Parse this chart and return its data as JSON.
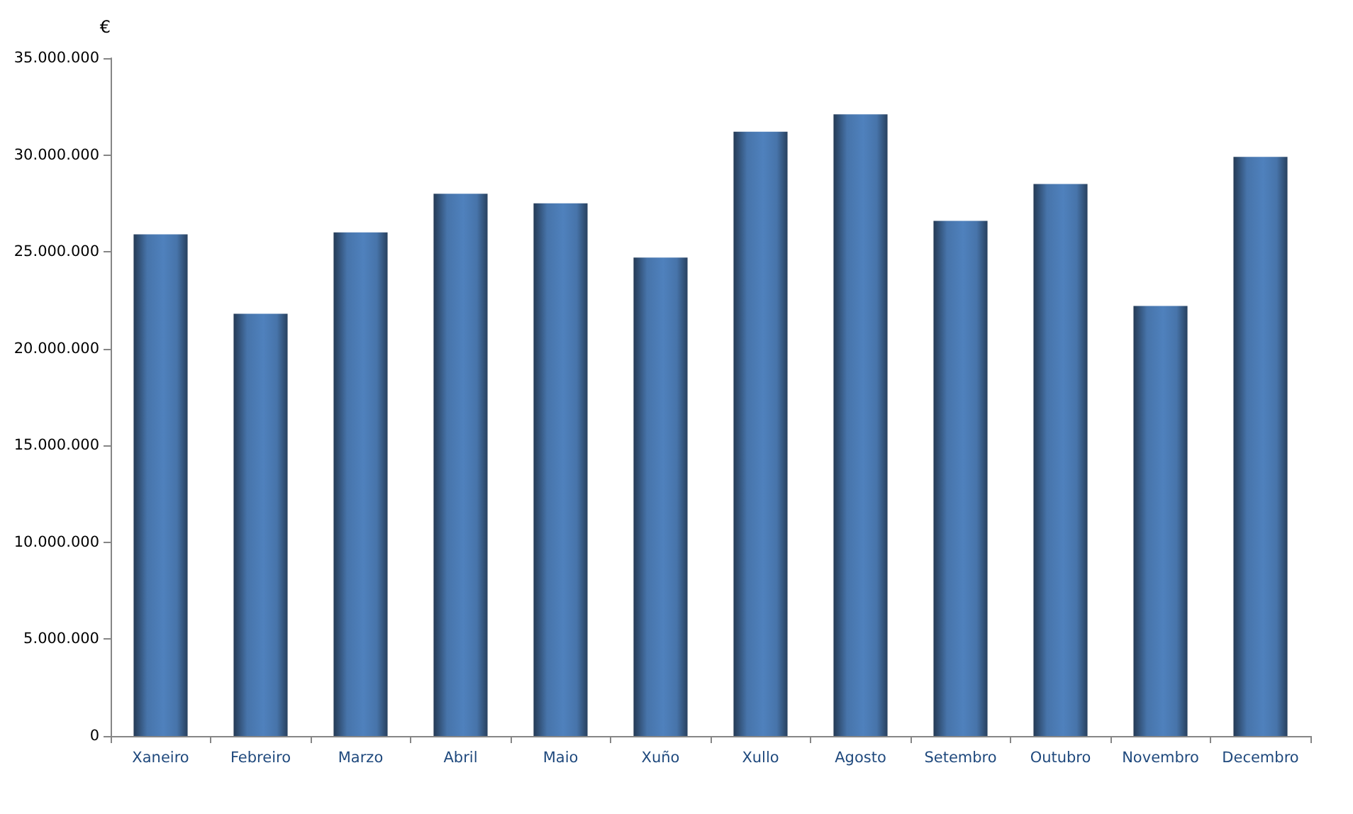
{
  "chart_data": {
    "type": "bar",
    "ylabel": "€",
    "categories": [
      "Xaneiro",
      "Febreiro",
      "Marzo",
      "Abril",
      "Maio",
      "Xuño",
      "Xullo",
      "Agosto",
      "Setembro",
      "Outubro",
      "Novembro",
      "Decembro"
    ],
    "values": [
      25900000,
      21800000,
      26000000,
      28000000,
      27500000,
      24700000,
      31200000,
      32100000,
      26600000,
      28500000,
      22200000,
      29900000
    ],
    "color": "#4f81bd",
    "ylim": [
      0,
      35000000
    ],
    "yticks": [
      0,
      {
        "value": 5000000,
        "label": "5.000.000"
      },
      {
        "value": 10000000,
        "label": "10.000.000"
      },
      {
        "value": 15000000,
        "label": "15.000.000"
      },
      {
        "value": 20000000,
        "label": "20.000.000"
      },
      {
        "value": 25000000,
        "label": "25.000.000"
      },
      {
        "value": 30000000,
        "label": "30.000.000"
      },
      {
        "value": 35000000,
        "label": "35.000.000"
      }
    ],
    "grid": false
  }
}
